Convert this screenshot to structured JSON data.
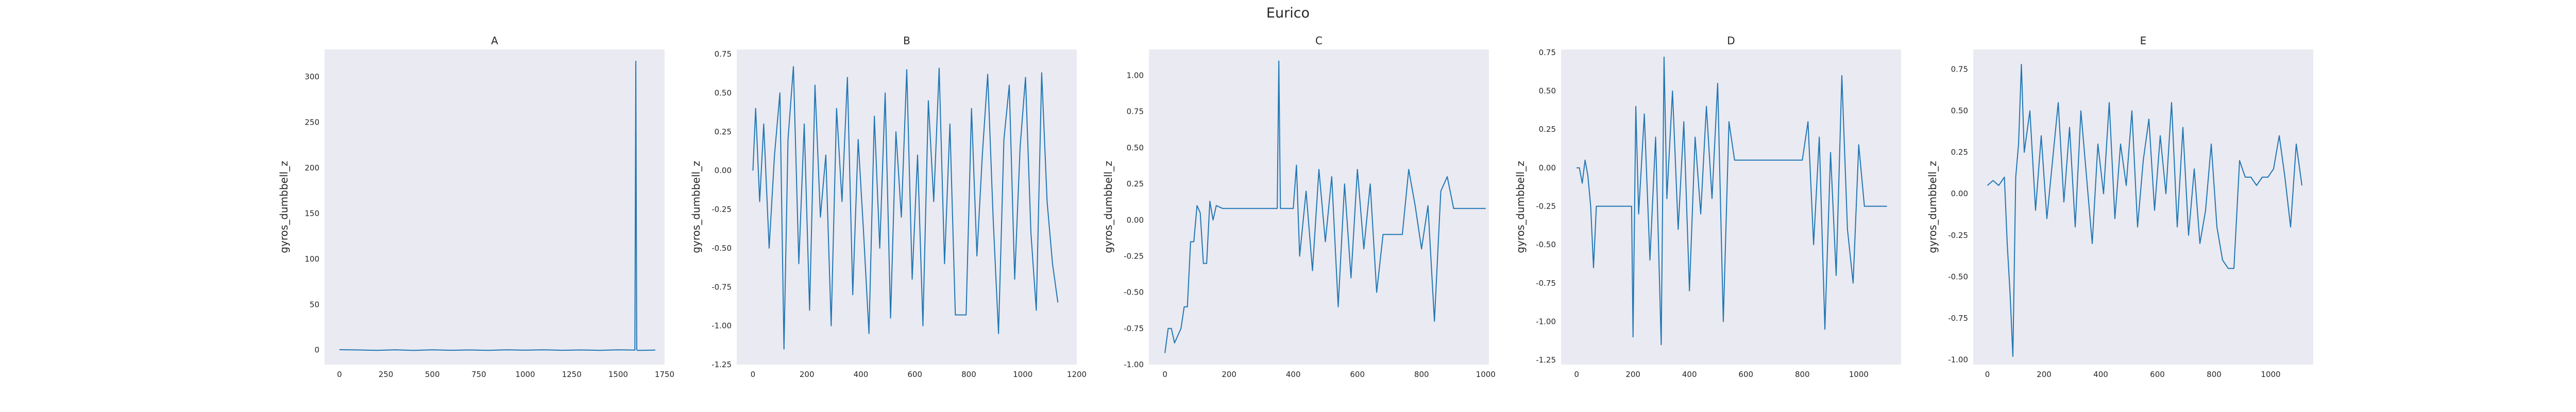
{
  "suptitle": "Eurico",
  "style": {
    "panel_bg": "#eaeaf2",
    "line_color": "#1f77b4",
    "text_color": "#262626"
  },
  "chart_data": [
    {
      "type": "line",
      "title": "A",
      "xlabel": "",
      "ylabel": "gyros_dumbbell_z",
      "grid": false,
      "xlim": [
        -80,
        1750
      ],
      "ylim": [
        -16,
        330
      ],
      "xticks": [
        0,
        250,
        500,
        750,
        1000,
        1250,
        1500,
        1750
      ],
      "yticks": [
        0,
        50,
        100,
        150,
        200,
        250,
        300
      ],
      "x": [
        0,
        100,
        200,
        300,
        400,
        500,
        600,
        700,
        800,
        900,
        1000,
        1100,
        1200,
        1300,
        1400,
        1500,
        1590,
        1595,
        1600,
        1605,
        1700
      ],
      "y": [
        0.4,
        0.1,
        -0.3,
        0.2,
        -0.4,
        0.3,
        -0.2,
        0.1,
        -0.3,
        0.2,
        -0.1,
        0.3,
        -0.2,
        0.1,
        -0.3,
        0.2,
        0.0,
        317,
        0.3,
        -0.4,
        0.0
      ]
    },
    {
      "type": "line",
      "title": "B",
      "xlabel": "",
      "ylabel": "gyros_dumbbell_z",
      "grid": false,
      "xlim": [
        -60,
        1200
      ],
      "ylim": [
        -1.25,
        0.78
      ],
      "xticks": [
        0,
        200,
        400,
        600,
        800,
        1000,
        1200
      ],
      "yticks": [
        -1.25,
        -1.0,
        -0.75,
        -0.5,
        -0.25,
        0.0,
        0.25,
        0.5,
        0.75
      ],
      "x": [
        0,
        10,
        25,
        40,
        60,
        80,
        100,
        115,
        130,
        150,
        170,
        190,
        210,
        230,
        250,
        270,
        290,
        310,
        330,
        350,
        370,
        390,
        410,
        430,
        450,
        470,
        490,
        510,
        530,
        550,
        570,
        590,
        610,
        630,
        650,
        670,
        690,
        710,
        730,
        750,
        770,
        790,
        810,
        830,
        850,
        870,
        890,
        910,
        930,
        950,
        970,
        990,
        1010,
        1030,
        1050,
        1070,
        1090,
        1110,
        1130
      ],
      "y": [
        0.0,
        0.4,
        -0.2,
        0.3,
        -0.5,
        0.1,
        0.5,
        -1.15,
        0.2,
        0.67,
        -0.6,
        0.3,
        -0.9,
        0.55,
        -0.3,
        0.1,
        -1.0,
        0.4,
        -0.2,
        0.6,
        -0.8,
        0.2,
        -0.4,
        -1.05,
        0.35,
        -0.5,
        0.5,
        -0.95,
        0.25,
        -0.3,
        0.65,
        -0.7,
        0.1,
        -1.0,
        0.45,
        -0.2,
        0.66,
        -0.6,
        0.3,
        -0.93,
        -0.93,
        -0.93,
        0.4,
        -0.55,
        0.1,
        0.62,
        -0.3,
        -1.05,
        0.2,
        0.55,
        -0.7,
        0.15,
        0.6,
        -0.4,
        -0.9,
        0.63,
        -0.2,
        -0.6,
        -0.85
      ]
    },
    {
      "type": "line",
      "title": "C",
      "xlabel": "",
      "ylabel": "gyros_dumbbell_z",
      "grid": false,
      "xlim": [
        -50,
        1010
      ],
      "ylim": [
        -1.0,
        1.18
      ],
      "xticks": [
        0,
        200,
        400,
        600,
        800,
        1000
      ],
      "yticks": [
        -1.0,
        -0.75,
        -0.5,
        -0.25,
        0.0,
        0.25,
        0.5,
        0.75,
        1.0
      ],
      "x": [
        0,
        10,
        20,
        30,
        40,
        50,
        60,
        70,
        80,
        90,
        100,
        110,
        120,
        130,
        140,
        150,
        160,
        180,
        200,
        250,
        300,
        350,
        355,
        360,
        400,
        410,
        420,
        440,
        460,
        480,
        500,
        520,
        540,
        560,
        580,
        600,
        620,
        640,
        660,
        680,
        700,
        720,
        740,
        760,
        780,
        800,
        820,
        840,
        860,
        880,
        900,
        920,
        940,
        960,
        980,
        1000
      ],
      "y": [
        -0.92,
        -0.75,
        -0.75,
        -0.85,
        -0.8,
        -0.75,
        -0.6,
        -0.6,
        -0.15,
        -0.15,
        0.1,
        0.05,
        -0.3,
        -0.3,
        0.13,
        0.0,
        0.1,
        0.08,
        0.08,
        0.08,
        0.08,
        0.08,
        1.1,
        0.08,
        0.08,
        0.38,
        -0.25,
        0.2,
        -0.35,
        0.35,
        -0.15,
        0.3,
        -0.6,
        0.25,
        -0.4,
        0.35,
        -0.2,
        0.25,
        -0.5,
        -0.1,
        -0.1,
        -0.1,
        -0.1,
        0.35,
        0.1,
        -0.2,
        0.1,
        -0.7,
        0.2,
        0.3,
        0.08,
        0.08,
        0.08,
        0.08,
        0.08,
        0.08
      ]
    },
    {
      "type": "line",
      "title": "D",
      "xlabel": "",
      "ylabel": "gyros_dumbbell_z",
      "grid": false,
      "xlim": [
        -55,
        1150
      ],
      "ylim": [
        -1.28,
        0.77
      ],
      "xticks": [
        0,
        200,
        400,
        600,
        800,
        1000
      ],
      "yticks": [
        -1.25,
        -1.0,
        -0.75,
        -0.5,
        -0.25,
        0.0,
        0.25,
        0.5,
        0.75
      ],
      "x": [
        0,
        10,
        20,
        30,
        40,
        50,
        60,
        70,
        100,
        150,
        195,
        200,
        210,
        220,
        240,
        260,
        280,
        300,
        310,
        320,
        340,
        360,
        380,
        400,
        420,
        440,
        460,
        480,
        500,
        520,
        540,
        560,
        600,
        650,
        700,
        750,
        800,
        820,
        840,
        860,
        880,
        900,
        920,
        940,
        960,
        980,
        1000,
        1020,
        1040,
        1060,
        1080,
        1100
      ],
      "y": [
        0.0,
        0.0,
        -0.1,
        0.05,
        -0.05,
        -0.25,
        -0.65,
        -0.25,
        -0.25,
        -0.25,
        -0.25,
        -1.1,
        0.4,
        -0.3,
        0.35,
        -0.6,
        0.2,
        -1.15,
        0.72,
        -0.2,
        0.5,
        -0.4,
        0.3,
        -0.8,
        0.2,
        -0.3,
        0.4,
        -0.2,
        0.55,
        -1.0,
        0.3,
        0.05,
        0.05,
        0.05,
        0.05,
        0.05,
        0.05,
        0.3,
        -0.5,
        0.2,
        -1.05,
        0.1,
        -0.7,
        0.6,
        -0.4,
        -0.75,
        0.15,
        -0.25,
        -0.25,
        -0.25,
        -0.25,
        -0.25
      ]
    },
    {
      "type": "line",
      "title": "E",
      "xlabel": "",
      "ylabel": "gyros_dumbbell_z",
      "grid": false,
      "xlim": [
        -50,
        1150
      ],
      "ylim": [
        -1.03,
        0.87
      ],
      "xticks": [
        0,
        200,
        400,
        600,
        800,
        1000
      ],
      "yticks": [
        -1.0,
        -0.75,
        -0.5,
        -0.25,
        0.0,
        0.25,
        0.5,
        0.75
      ],
      "x": [
        0,
        20,
        40,
        60,
        70,
        80,
        90,
        100,
        110,
        120,
        130,
        150,
        170,
        190,
        210,
        230,
        250,
        270,
        290,
        310,
        330,
        350,
        370,
        390,
        410,
        430,
        450,
        470,
        490,
        510,
        530,
        550,
        570,
        590,
        610,
        630,
        650,
        670,
        690,
        710,
        730,
        750,
        770,
        790,
        810,
        830,
        850,
        870,
        890,
        910,
        930,
        950,
        970,
        990,
        1010,
        1030,
        1050,
        1070,
        1090,
        1110
      ],
      "y": [
        0.05,
        0.08,
        0.05,
        0.1,
        -0.3,
        -0.6,
        -0.98,
        0.1,
        0.3,
        0.78,
        0.25,
        0.5,
        -0.1,
        0.35,
        -0.15,
        0.2,
        0.55,
        -0.05,
        0.4,
        -0.2,
        0.5,
        0.1,
        -0.3,
        0.3,
        0.0,
        0.55,
        -0.15,
        0.3,
        0.05,
        0.5,
        -0.2,
        0.2,
        0.45,
        -0.1,
        0.35,
        0.0,
        0.55,
        -0.2,
        0.4,
        -0.25,
        0.15,
        -0.3,
        -0.1,
        0.3,
        -0.2,
        -0.4,
        -0.45,
        -0.45,
        0.2,
        0.1,
        0.1,
        0.05,
        0.1,
        0.1,
        0.15,
        0.35,
        0.1,
        -0.2,
        0.3,
        0.05
      ]
    }
  ]
}
